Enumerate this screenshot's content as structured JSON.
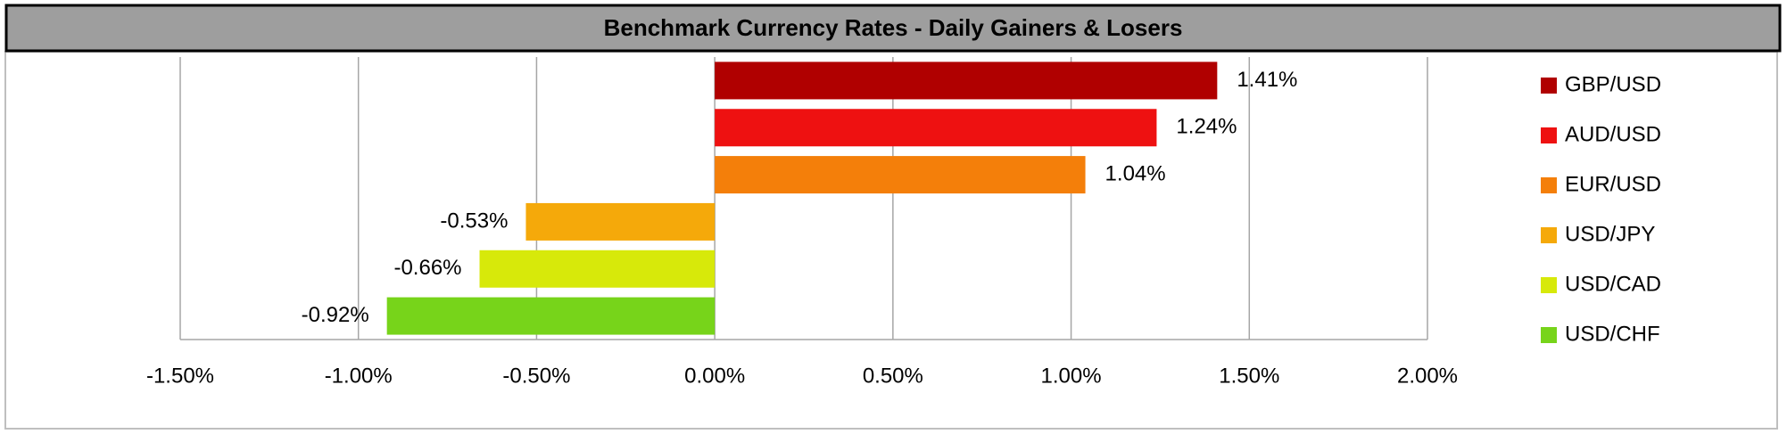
{
  "chart_data": {
    "type": "bar",
    "orientation": "horizontal",
    "title": "Benchmark Currency Rates - Daily Gainers & Losers",
    "categories": [
      "GBP/USD",
      "AUD/USD",
      "EUR/USD",
      "USD/JPY",
      "USD/CAD",
      "USD/CHF"
    ],
    "values": [
      1.41,
      1.24,
      1.04,
      -0.53,
      -0.66,
      -0.92
    ],
    "value_labels": [
      "1.41%",
      "1.24%",
      "1.04%",
      "-0.53%",
      "-0.66%",
      "-0.92%"
    ],
    "colors": [
      "#b00000",
      "#ee1111",
      "#f47f0a",
      "#f5a90a",
      "#d7e90a",
      "#77d41a"
    ],
    "xlim": [
      -1.5,
      2.0
    ],
    "xticks": [
      {
        "value": -1.5,
        "label": "-1.50%"
      },
      {
        "value": -1.0,
        "label": "-1.00%"
      },
      {
        "value": -0.5,
        "label": "-0.50%"
      },
      {
        "value": 0,
        "label": "0.00%"
      },
      {
        "value": 0.5,
        "label": "0.50%"
      },
      {
        "value": 1.0,
        "label": "1.00%"
      },
      {
        "value": 1.5,
        "label": "1.50%"
      },
      {
        "value": 2.0,
        "label": "2.00%"
      }
    ],
    "grid": true,
    "legend": "right"
  }
}
